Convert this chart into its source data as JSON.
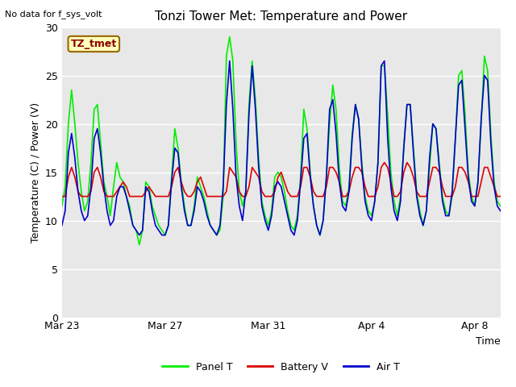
{
  "title": "Tonzi Tower Met: Temperature and Power",
  "no_data_text": "No data for f_sys_volt",
  "tz_label": "TZ_tmet",
  "xlabel": "Time",
  "ylabel": "Temperature (C) / Power (V)",
  "ylim": [
    0,
    30
  ],
  "yticks": [
    0,
    5,
    10,
    15,
    20,
    25,
    30
  ],
  "xtick_labels": [
    "Mar 23",
    "Mar 27",
    "Mar 31",
    "Apr 4",
    "Apr 8"
  ],
  "xtick_positions": [
    0,
    4,
    8,
    12,
    16
  ],
  "background_color": "#e8e8e8",
  "panel_t_color": "#00ee00",
  "battery_v_color": "#dd0000",
  "air_t_color": "#0000cc",
  "line_width": 1.2,
  "figsize": [
    6.4,
    4.8
  ],
  "dpi": 100,
  "time_days": [
    0.0,
    0.125,
    0.25,
    0.375,
    0.5,
    0.625,
    0.75,
    0.875,
    1.0,
    1.125,
    1.25,
    1.375,
    1.5,
    1.625,
    1.75,
    1.875,
    2.0,
    2.125,
    2.25,
    2.375,
    2.5,
    2.625,
    2.75,
    2.875,
    3.0,
    3.125,
    3.25,
    3.375,
    3.5,
    3.625,
    3.75,
    3.875,
    4.0,
    4.125,
    4.25,
    4.375,
    4.5,
    4.625,
    4.75,
    4.875,
    5.0,
    5.125,
    5.25,
    5.375,
    5.5,
    5.625,
    5.75,
    5.875,
    6.0,
    6.125,
    6.25,
    6.375,
    6.5,
    6.625,
    6.75,
    6.875,
    7.0,
    7.125,
    7.25,
    7.375,
    7.5,
    7.625,
    7.75,
    7.875,
    8.0,
    8.125,
    8.25,
    8.375,
    8.5,
    8.625,
    8.75,
    8.875,
    9.0,
    9.125,
    9.25,
    9.375,
    9.5,
    9.625,
    9.75,
    9.875,
    10.0,
    10.125,
    10.25,
    10.375,
    10.5,
    10.625,
    10.75,
    10.875,
    11.0,
    11.125,
    11.25,
    11.375,
    11.5,
    11.625,
    11.75,
    11.875,
    12.0,
    12.125,
    12.25,
    12.375,
    12.5,
    12.625,
    12.75,
    12.875,
    13.0,
    13.125,
    13.25,
    13.375,
    13.5,
    13.625,
    13.75,
    13.875,
    14.0,
    14.125,
    14.25,
    14.375,
    14.5,
    14.625,
    14.75,
    14.875,
    15.0,
    15.125,
    15.25,
    15.375,
    15.5,
    15.625,
    15.75,
    15.875,
    16.0,
    16.125,
    16.25,
    16.375,
    16.5,
    16.625,
    16.75,
    16.875,
    17.0
  ],
  "panel_t": [
    11.5,
    13.5,
    20.0,
    23.5,
    20.0,
    16.0,
    13.0,
    11.0,
    12.0,
    16.0,
    21.5,
    22.0,
    18.0,
    14.0,
    12.5,
    10.5,
    13.5,
    16.0,
    14.5,
    14.0,
    12.5,
    11.5,
    9.5,
    9.0,
    7.5,
    9.0,
    14.0,
    13.5,
    11.5,
    10.5,
    9.5,
    9.0,
    8.5,
    9.5,
    14.5,
    19.5,
    17.5,
    14.0,
    11.5,
    9.5,
    9.5,
    11.5,
    14.5,
    13.5,
    12.5,
    11.0,
    9.5,
    9.0,
    8.5,
    9.0,
    12.5,
    27.0,
    29.0,
    26.5,
    18.0,
    13.0,
    11.5,
    13.0,
    22.0,
    26.5,
    22.5,
    16.5,
    12.0,
    10.5,
    9.5,
    11.0,
    14.5,
    15.0,
    14.5,
    13.0,
    11.0,
    9.5,
    9.0,
    10.5,
    14.5,
    21.5,
    19.5,
    15.0,
    11.5,
    9.5,
    8.5,
    10.0,
    14.5,
    20.0,
    24.0,
    21.5,
    15.5,
    12.0,
    11.5,
    13.5,
    19.0,
    22.0,
    20.5,
    16.0,
    12.5,
    11.0,
    10.5,
    12.0,
    16.0,
    26.0,
    26.0,
    21.0,
    15.0,
    12.0,
    10.5,
    12.5,
    17.5,
    22.0,
    22.0,
    17.5,
    13.0,
    11.0,
    9.5,
    11.0,
    15.5,
    20.0,
    19.5,
    16.0,
    12.5,
    11.0,
    10.5,
    12.5,
    18.5,
    25.0,
    25.5,
    21.0,
    15.0,
    12.5,
    11.5,
    14.0,
    20.0,
    27.0,
    25.5,
    19.0,
    14.0,
    12.0,
    11.5
  ],
  "battery_v": [
    12.5,
    12.5,
    14.5,
    15.5,
    14.5,
    13.0,
    12.5,
    12.5,
    12.5,
    13.0,
    15.0,
    15.5,
    14.5,
    13.0,
    12.5,
    12.5,
    12.5,
    13.0,
    13.5,
    14.0,
    13.5,
    12.5,
    12.5,
    12.5,
    12.5,
    12.5,
    13.0,
    13.5,
    13.0,
    12.5,
    12.5,
    12.5,
    12.5,
    12.5,
    13.5,
    15.0,
    15.5,
    14.0,
    13.0,
    12.5,
    12.5,
    13.0,
    14.0,
    14.5,
    13.5,
    12.5,
    12.5,
    12.5,
    12.5,
    12.5,
    12.5,
    13.0,
    15.5,
    15.0,
    14.5,
    13.0,
    12.5,
    12.5,
    13.5,
    15.5,
    15.0,
    14.5,
    13.0,
    12.5,
    12.5,
    12.5,
    13.0,
    14.5,
    15.0,
    14.0,
    13.0,
    12.5,
    12.5,
    12.5,
    13.5,
    15.5,
    15.5,
    14.5,
    13.0,
    12.5,
    12.5,
    12.5,
    13.5,
    15.5,
    15.5,
    15.0,
    14.0,
    12.5,
    12.5,
    13.0,
    14.5,
    15.5,
    15.5,
    15.0,
    13.5,
    12.5,
    12.5,
    12.5,
    13.5,
    15.5,
    16.0,
    15.5,
    14.0,
    12.5,
    12.5,
    13.0,
    15.0,
    16.0,
    15.5,
    14.5,
    13.0,
    12.5,
    12.5,
    12.5,
    14.0,
    15.5,
    15.5,
    15.0,
    13.5,
    12.5,
    12.5,
    12.5,
    13.5,
    15.5,
    15.5,
    15.0,
    14.0,
    12.5,
    12.5,
    12.5,
    14.0,
    15.5,
    15.5,
    14.5,
    13.5,
    12.5,
    12.5
  ],
  "air_t": [
    9.5,
    11.0,
    17.0,
    19.0,
    16.5,
    13.0,
    11.0,
    10.0,
    10.5,
    13.5,
    18.5,
    19.5,
    17.0,
    13.5,
    11.0,
    9.5,
    10.0,
    12.5,
    13.5,
    13.5,
    12.5,
    11.0,
    9.5,
    9.0,
    8.5,
    9.0,
    13.5,
    13.0,
    11.0,
    9.5,
    9.0,
    8.5,
    8.5,
    9.5,
    14.0,
    17.5,
    17.0,
    13.5,
    11.0,
    9.5,
    9.5,
    11.0,
    13.5,
    13.0,
    12.0,
    10.5,
    9.5,
    9.0,
    8.5,
    9.5,
    13.5,
    22.0,
    26.5,
    21.5,
    14.5,
    11.5,
    10.0,
    13.0,
    21.0,
    26.0,
    21.5,
    15.5,
    11.5,
    10.0,
    9.0,
    10.5,
    13.5,
    14.0,
    13.5,
    12.0,
    10.5,
    9.0,
    8.5,
    10.0,
    14.0,
    18.5,
    19.0,
    14.5,
    11.5,
    9.5,
    8.5,
    10.0,
    14.5,
    21.5,
    22.5,
    19.0,
    14.0,
    11.5,
    11.0,
    13.0,
    18.5,
    22.0,
    20.5,
    15.5,
    12.0,
    10.5,
    10.0,
    12.0,
    16.0,
    26.0,
    26.5,
    18.5,
    13.5,
    11.0,
    10.0,
    12.0,
    17.5,
    22.0,
    22.0,
    17.0,
    12.5,
    10.5,
    9.5,
    11.0,
    16.5,
    20.0,
    19.5,
    15.5,
    12.0,
    10.5,
    10.5,
    13.0,
    18.5,
    24.0,
    24.5,
    19.5,
    14.5,
    12.0,
    11.5,
    14.0,
    20.5,
    25.0,
    24.5,
    18.0,
    13.5,
    11.5,
    11.0
  ]
}
